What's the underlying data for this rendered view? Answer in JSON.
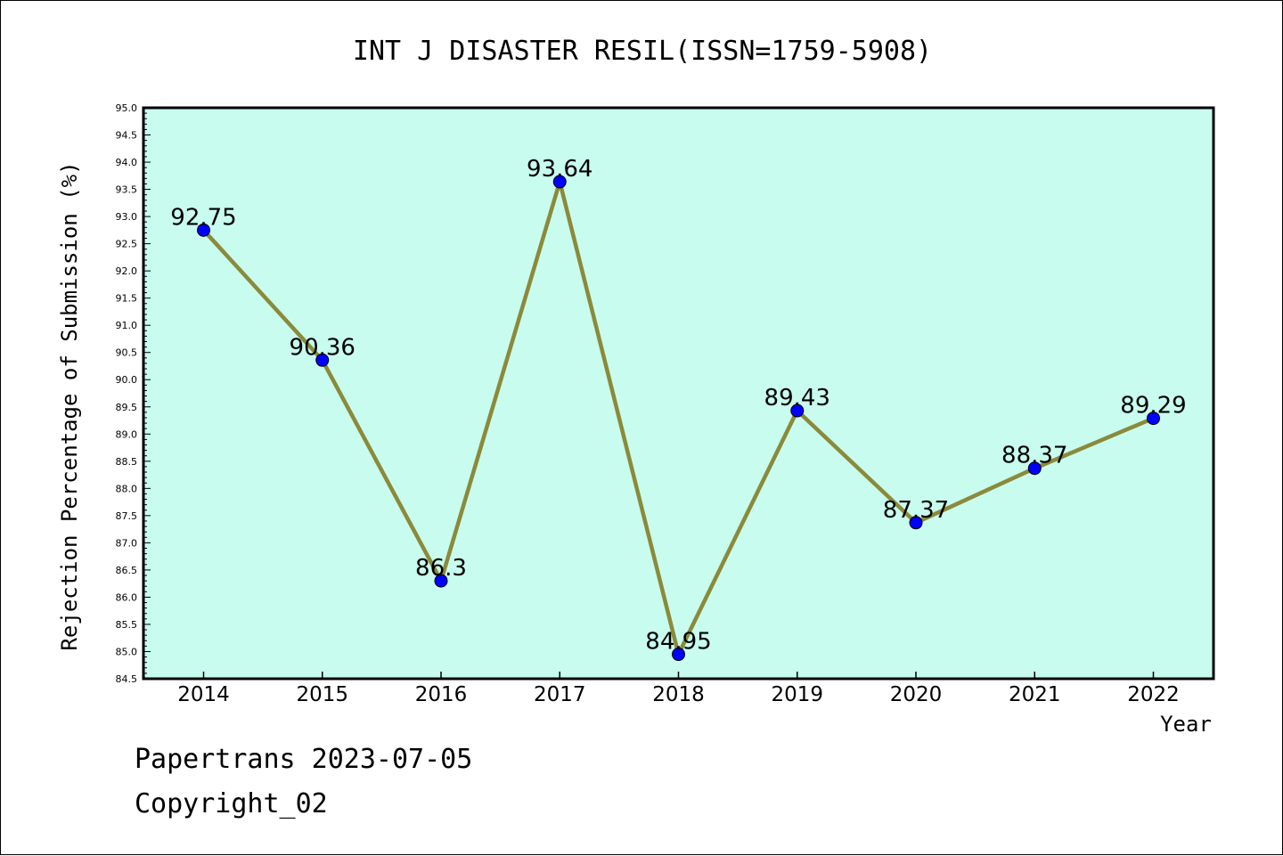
{
  "chart_data": {
    "type": "line",
    "title": "INT J DISASTER RESIL(ISSN=1759-5908)",
    "xlabel": "Year",
    "ylabel": "Rejection Percentage of Submission (%)",
    "ylim": [
      84.5,
      95.0
    ],
    "y_tick_step": 0.5,
    "grid": false,
    "categories": [
      "2014",
      "2015",
      "2016",
      "2017",
      "2018",
      "2019",
      "2020",
      "2021",
      "2022"
    ],
    "series": [
      {
        "values": [
          92.75,
          90.36,
          86.3,
          93.64,
          84.95,
          89.43,
          87.37,
          88.37,
          89.29
        ],
        "labels": [
          "92.75",
          "90.36",
          "86.3",
          "93.64",
          "84.95",
          "89.43",
          "87.37",
          "88.37",
          "89.29"
        ],
        "line_color": "#8B8A3A",
        "marker_color": "#0000FF"
      }
    ],
    "plot_background": "#C8FCEE"
  },
  "footer": {
    "line1": "Papertrans 2023-07-05",
    "line2": "Copyright_02"
  }
}
